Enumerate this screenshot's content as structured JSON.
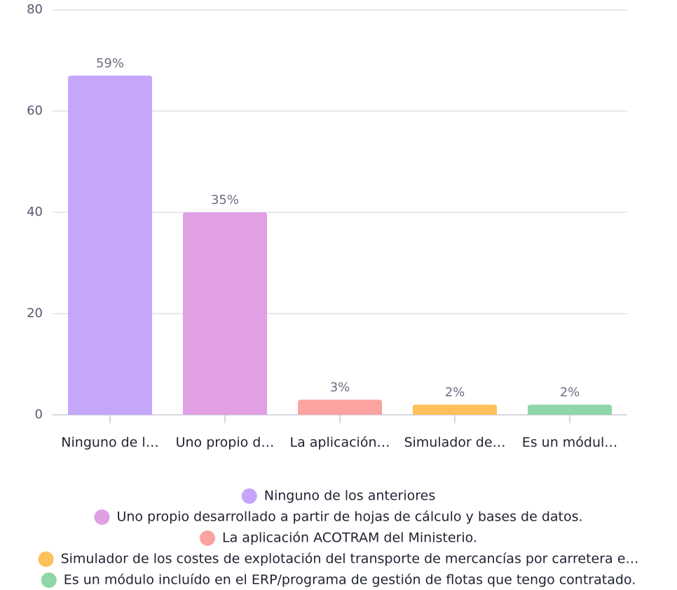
{
  "chart_data": {
    "type": "bar",
    "categories": [
      "Ninguno de l…",
      "Uno propio d…",
      "La aplicación…",
      "Simulador de…",
      "Es un módul…"
    ],
    "values": [
      67,
      40,
      3,
      2,
      2
    ],
    "data_labels": [
      "59%",
      "35%",
      "3%",
      "2%",
      "2%"
    ],
    "colors": [
      "#c4a6fb",
      "#e0a0e3",
      "#fba3a0",
      "#fdc05a",
      "#8fd6a9"
    ],
    "legend": [
      "Ninguno de los anteriores",
      "Uno propio desarrollado a partir de hojas de cálculo y bases de datos.",
      "La aplicación ACOTRAM del Ministerio.",
      "Simulador de los costes de explotación del transporte de mercancías por carretera e…",
      "Es un módulo incluído en el ERP/programa de gestión de flotas que tengo contratado."
    ],
    "ylim": [
      0,
      80
    ],
    "yticks": [
      0,
      20,
      40,
      60,
      80
    ],
    "grid": true
  }
}
